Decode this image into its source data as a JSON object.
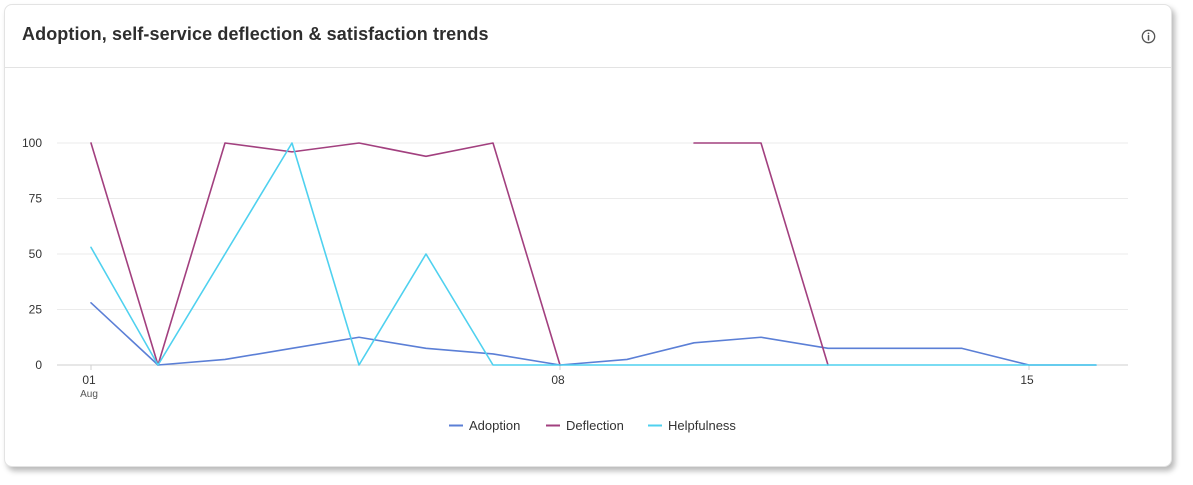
{
  "card": {
    "title": "Adoption, self-service deflection & satisfaction trends",
    "info_icon": "info-icon"
  },
  "chart_data": {
    "type": "line",
    "title": "Adoption, self-service deflection & satisfaction trends",
    "xlabel": "",
    "ylabel": "",
    "x": [
      "2024-08-01",
      "2024-08-02",
      "2024-08-03",
      "2024-08-04",
      "2024-08-05",
      "2024-08-06",
      "2024-08-07",
      "2024-08-08",
      "2024-08-09",
      "2024-08-10",
      "2024-08-11",
      "2024-08-12",
      "2024-08-13",
      "2024-08-14",
      "2024-08-15",
      "2024-08-16"
    ],
    "x_ticks": [
      {
        "index": 0,
        "label": "01",
        "sublabel": "Aug"
      },
      {
        "index": 7,
        "label": "08",
        "sublabel": ""
      },
      {
        "index": 14,
        "label": "15",
        "sublabel": ""
      }
    ],
    "ylim": [
      0,
      100
    ],
    "y_ticks": [
      0,
      25,
      50,
      75,
      100
    ],
    "grid": true,
    "legend_position": "bottom",
    "series": [
      {
        "name": "Adoption",
        "color": "#5b7fd6",
        "values": [
          28,
          0,
          2.5,
          7.5,
          12.5,
          7.5,
          5,
          0,
          2.5,
          10,
          12.5,
          7.5,
          7.5,
          7.5,
          0,
          0
        ]
      },
      {
        "name": "Deflection",
        "color": "#a2407f",
        "values": [
          100,
          0,
          100,
          96,
          100,
          94,
          100,
          0,
          null,
          100,
          100,
          0,
          null,
          null,
          null,
          null
        ]
      },
      {
        "name": "Helpfulness",
        "color": "#4fd1ef",
        "values": [
          53,
          0,
          50,
          100,
          0,
          50,
          0,
          0,
          0,
          0,
          0,
          0,
          0,
          0,
          0,
          0
        ]
      }
    ]
  }
}
